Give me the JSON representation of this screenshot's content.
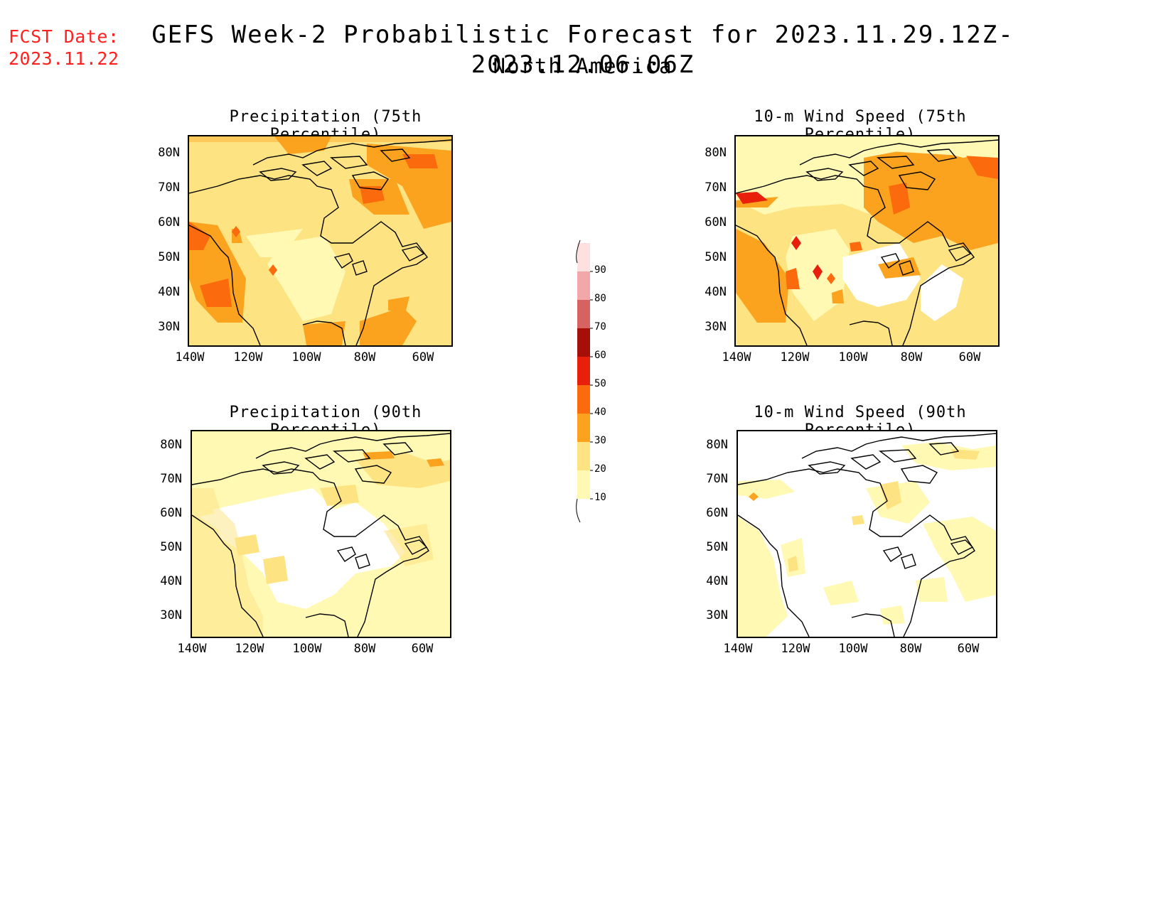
{
  "header": {
    "fcst_label": "FCST Date:",
    "fcst_date": "2023.11.22",
    "title": "GEFS Week-2 Probabilistic Forecast for 2023.11.29.12Z-2023.12.06.06Z",
    "subtitle": "North America"
  },
  "panels": [
    {
      "id": "precip75",
      "title": "Precipitation (75th Percentile)"
    },
    {
      "id": "wind75",
      "title": "10-m Wind Speed (75th Percentile)"
    },
    {
      "id": "precip90",
      "title": "Precipitation (90th Percentile)"
    },
    {
      "id": "wind90",
      "title": "10-m Wind Speed (90th Percentile)"
    }
  ],
  "axes": {
    "lat_labels": [
      "80N",
      "70N",
      "60N",
      "50N",
      "40N",
      "30N"
    ],
    "lon_labels": [
      "140W",
      "120W",
      "100W",
      "80W",
      "60W"
    ]
  },
  "colorbar": {
    "levels": [
      "10",
      "20",
      "30",
      "40",
      "50",
      "60",
      "70",
      "80",
      "90"
    ],
    "colors": [
      "#fff9b4",
      "#fde382",
      "#fba21e",
      "#fb6a0c",
      "#e81f0a",
      "#a50f08",
      "#d66262",
      "#f2a8a8",
      "#fde0e0"
    ]
  },
  "legend_colors": {
    "c10": "#fff9b4",
    "c20": "#fde382",
    "c30": "#fba21e",
    "c40": "#fb6a0c",
    "c50": "#e81f0a"
  }
}
